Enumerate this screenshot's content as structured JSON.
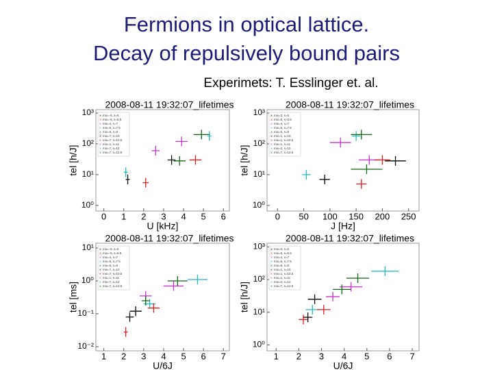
{
  "slide": {
    "title_lines": [
      "Fermions in optical lattice.",
      "Decay of repulsively bound pairs"
    ],
    "credit": "Experimets: T. Esslinger et. al."
  },
  "chart_data": [
    {
      "type": "scatter",
      "title": "2008-08-11 19:32:07_lifetimes",
      "x_label": "U [kHz]",
      "y_label": "tel [h/J]",
      "log_y": true,
      "xlim": [
        -0.4,
        6.3
      ],
      "xticks": [
        0,
        1,
        2,
        3,
        4,
        5,
        6
      ],
      "ylim": [
        0.66,
        1290
      ],
      "yticks": [
        {
          "value": 1,
          "label": "10⁰"
        },
        {
          "value": 10,
          "label": "10¹"
        },
        {
          "value": 100,
          "label": "10²"
        },
        {
          "value": 1000,
          "label": "10³"
        }
      ],
      "series": [
        {
          "name": "mix=-5, s=6",
          "color": "#000000",
          "x": [
            1.2
          ],
          "values": [
            7
          ],
          "xerr": [
            0.1
          ]
        },
        {
          "name": "mix=-5, s=6.5",
          "color": "#e31a1c",
          "x": [
            2.1
          ],
          "values": [
            5.5
          ],
          "xerr": [
            0.15
          ]
        },
        {
          "name": "mix=4, s=7",
          "color": "#cc33cc",
          "x": [
            2.6
          ],
          "values": [
            60
          ],
          "xerr": [
            0.2
          ]
        },
        {
          "name": "mix=5, s=7.5",
          "color": "#22bbbb",
          "x": [
            1.1
          ],
          "values": [
            12
          ],
          "xerr": [
            0.1
          ]
        },
        {
          "name": "mix=5, s=8",
          "color": "#116611",
          "x": [
            3.8
          ],
          "values": [
            28
          ],
          "xerr": [
            0.3
          ]
        },
        {
          "name": "mix=7, s=10",
          "color": "#000000",
          "x": [
            3.4
          ],
          "values": [
            30
          ],
          "xerr": [
            0.2
          ]
        },
        {
          "name": "mix=7, s=10.5",
          "color": "#e31a1c",
          "x": [
            4.6
          ],
          "values": [
            30
          ],
          "xerr": [
            0.3
          ]
        },
        {
          "name": "mix=1, s=11",
          "color": "#cc33cc",
          "x": [
            3.9
          ],
          "values": [
            120
          ],
          "xerr": [
            0.3
          ]
        },
        {
          "name": "mix=7, s=12",
          "color": "#22bbbb",
          "x": [
            5.3
          ],
          "values": [
            180
          ],
          "xerr": [
            0.1
          ]
        },
        {
          "name": "mix=7, s=12.5",
          "color": "#116611",
          "x": [
            4.9
          ],
          "values": [
            200
          ],
          "xerr": [
            0.4
          ]
        }
      ]
    },
    {
      "type": "scatter",
      "title": "2008-08-11 19:32:07_lifetimes",
      "x_label": "J [Hz]",
      "y_label": "tel [h/J]",
      "log_y": true,
      "xlim": [
        -20,
        270
      ],
      "xticks": [
        0,
        50,
        100,
        150,
        200,
        250
      ],
      "ylim": [
        0.66,
        1290
      ],
      "yticks": [
        {
          "value": 1,
          "label": "10⁰"
        },
        {
          "value": 10,
          "label": "10¹"
        },
        {
          "value": 100,
          "label": "10²"
        },
        {
          "value": 1000,
          "label": "10³"
        }
      ],
      "series": [
        {
          "name": "mix=3, s=6",
          "color": "#000000",
          "x": [
            225
          ],
          "values": [
            28
          ],
          "xerr": [
            20
          ]
        },
        {
          "name": "mix=5, s=6.5",
          "color": "#e31a1c",
          "x": [
            160
          ],
          "values": [
            5
          ],
          "xerr": [
            10
          ]
        },
        {
          "name": "mix=4, s=7",
          "color": "#cc33cc",
          "x": [
            175
          ],
          "values": [
            30
          ],
          "xerr": [
            20
          ]
        },
        {
          "name": "mix=5, s=7.5",
          "color": "#22bbbb",
          "x": [
            55
          ],
          "values": [
            10
          ],
          "xerr": [
            8
          ]
        },
        {
          "name": "mix=5, s=8",
          "color": "#116611",
          "x": [
            170
          ],
          "values": [
            15
          ],
          "xerr": [
            30
          ]
        },
        {
          "name": "mix=1, s=10",
          "color": "#000000",
          "x": [
            90
          ],
          "values": [
            7
          ],
          "xerr": [
            10
          ]
        },
        {
          "name": "mix=1, s=10.5",
          "color": "#e31a1c",
          "x": [
            200
          ],
          "values": [
            30
          ],
          "xerr": [
            15
          ]
        },
        {
          "name": "mix=1, s=11",
          "color": "#cc33cc",
          "x": [
            120
          ],
          "values": [
            110
          ],
          "xerr": [
            20
          ]
        },
        {
          "name": "mix=2, s=12",
          "color": "#22bbbb",
          "x": [
            150
          ],
          "values": [
            180
          ],
          "xerr": [
            8
          ]
        },
        {
          "name": "mix=7, s=12.5",
          "color": "#116611",
          "x": [
            160
          ],
          "values": [
            200
          ],
          "xerr": [
            20
          ]
        }
      ]
    },
    {
      "type": "scatter",
      "title": "2008-08-11 19:32:07_lifetimes",
      "x_label": "U/6J",
      "y_label": "tel [ms]",
      "log_y": true,
      "xlim": [
        0.6,
        7.3
      ],
      "xticks": [
        1,
        2,
        3,
        4,
        5,
        6,
        7
      ],
      "ylim": [
        0.0075,
        14
      ],
      "yticks": [
        {
          "value": 0.01,
          "label": "10⁻²"
        },
        {
          "value": 0.1,
          "label": "10⁻¹"
        },
        {
          "value": 1,
          "label": "10⁰"
        },
        {
          "value": 10,
          "label": "10¹"
        }
      ],
      "series": [
        {
          "name": "mix=-5, s=6",
          "color": "#000000",
          "x": [
            2.3
          ],
          "values": [
            0.08
          ],
          "xerr": [
            0.2
          ]
        },
        {
          "name": "mix=-5, s=6.5",
          "color": "#e31a1c",
          "x": [
            2.1
          ],
          "values": [
            0.028
          ],
          "xerr": [
            0.1
          ]
        },
        {
          "name": "mix=4, s=7",
          "color": "#cc33cc",
          "x": [
            3.1
          ],
          "values": [
            0.35
          ],
          "xerr": [
            0.3
          ]
        },
        {
          "name": "mix=5, s=7.5",
          "color": "#22bbbb",
          "x": [
            3.3
          ],
          "values": [
            0.2
          ],
          "xerr": [
            0.3
          ]
        },
        {
          "name": "mix=5, s=8",
          "color": "#116611",
          "x": [
            3.1
          ],
          "values": [
            0.25
          ],
          "xerr": [
            0.2
          ]
        },
        {
          "name": "mix=7, s=10",
          "color": "#000000",
          "x": [
            2.6
          ],
          "values": [
            0.12
          ],
          "xerr": [
            0.3
          ]
        },
        {
          "name": "mix=7, s=10.5",
          "color": "#e31a1c",
          "x": [
            3.5
          ],
          "values": [
            0.15
          ],
          "xerr": [
            0.3
          ]
        },
        {
          "name": "mix=1, s=11",
          "color": "#cc33cc",
          "x": [
            4.5
          ],
          "values": [
            0.7
          ],
          "xerr": [
            0.5
          ]
        },
        {
          "name": "mix=7, s=12",
          "color": "#22bbbb",
          "x": [
            5.7
          ],
          "values": [
            1.1
          ],
          "xerr": [
            0.5
          ]
        },
        {
          "name": "mix=7, s=12.5",
          "color": "#116611",
          "x": [
            4.7
          ],
          "values": [
            1.0
          ],
          "xerr": [
            0.5
          ]
        }
      ]
    },
    {
      "type": "scatter",
      "title": "2008-08-11 19:32:07_lifetimes",
      "x_label": "U/6J",
      "y_label": "tel [h/J]",
      "log_y": true,
      "xlim": [
        0.6,
        7.3
      ],
      "xticks": [
        1,
        2,
        3,
        4,
        5,
        6,
        7
      ],
      "ylim": [
        0.66,
        1290
      ],
      "yticks": [
        {
          "value": 1,
          "label": "10⁰"
        },
        {
          "value": 10,
          "label": "10¹"
        },
        {
          "value": 100,
          "label": "10²"
        },
        {
          "value": 1000,
          "label": "10³"
        }
      ],
      "series": [
        {
          "name": "mix=3, s=6",
          "color": "#000000",
          "x": [
            2.7
          ],
          "values": [
            25
          ],
          "xerr": [
            0.3
          ]
        },
        {
          "name": "mix=5, s=6.5",
          "color": "#e31a1c",
          "x": [
            2.2
          ],
          "values": [
            6
          ],
          "xerr": [
            0.2
          ]
        },
        {
          "name": "mix=4, s=7",
          "color": "#cc33cc",
          "x": [
            3.5
          ],
          "values": [
            30
          ],
          "xerr": [
            0.3
          ]
        },
        {
          "name": "mix=5, s=7.5",
          "color": "#22bbbb",
          "x": [
            2.6
          ],
          "values": [
            12
          ],
          "xerr": [
            0.3
          ]
        },
        {
          "name": "mix=5, s=8",
          "color": "#116611",
          "x": [
            4.6
          ],
          "values": [
            110
          ],
          "xerr": [
            0.5
          ]
        },
        {
          "name": "mix=1, s=10",
          "color": "#000000",
          "x": [
            2.4
          ],
          "values": [
            7
          ],
          "xerr": [
            0.2
          ]
        },
        {
          "name": "mix=1, s=10.5",
          "color": "#e31a1c",
          "x": [
            3.1
          ],
          "values": [
            12
          ],
          "xerr": [
            0.3
          ]
        },
        {
          "name": "mix=1, s=11",
          "color": "#cc33cc",
          "x": [
            4.3
          ],
          "values": [
            60
          ],
          "xerr": [
            0.5
          ]
        },
        {
          "name": "mix=2, s=12",
          "color": "#22bbbb",
          "x": [
            5.8
          ],
          "values": [
            180
          ],
          "xerr": [
            0.6
          ]
        },
        {
          "name": "mix=7, s=12.5",
          "color": "#116611",
          "x": [
            3.9
          ],
          "values": [
            50
          ],
          "xerr": [
            0.4
          ]
        }
      ]
    }
  ]
}
